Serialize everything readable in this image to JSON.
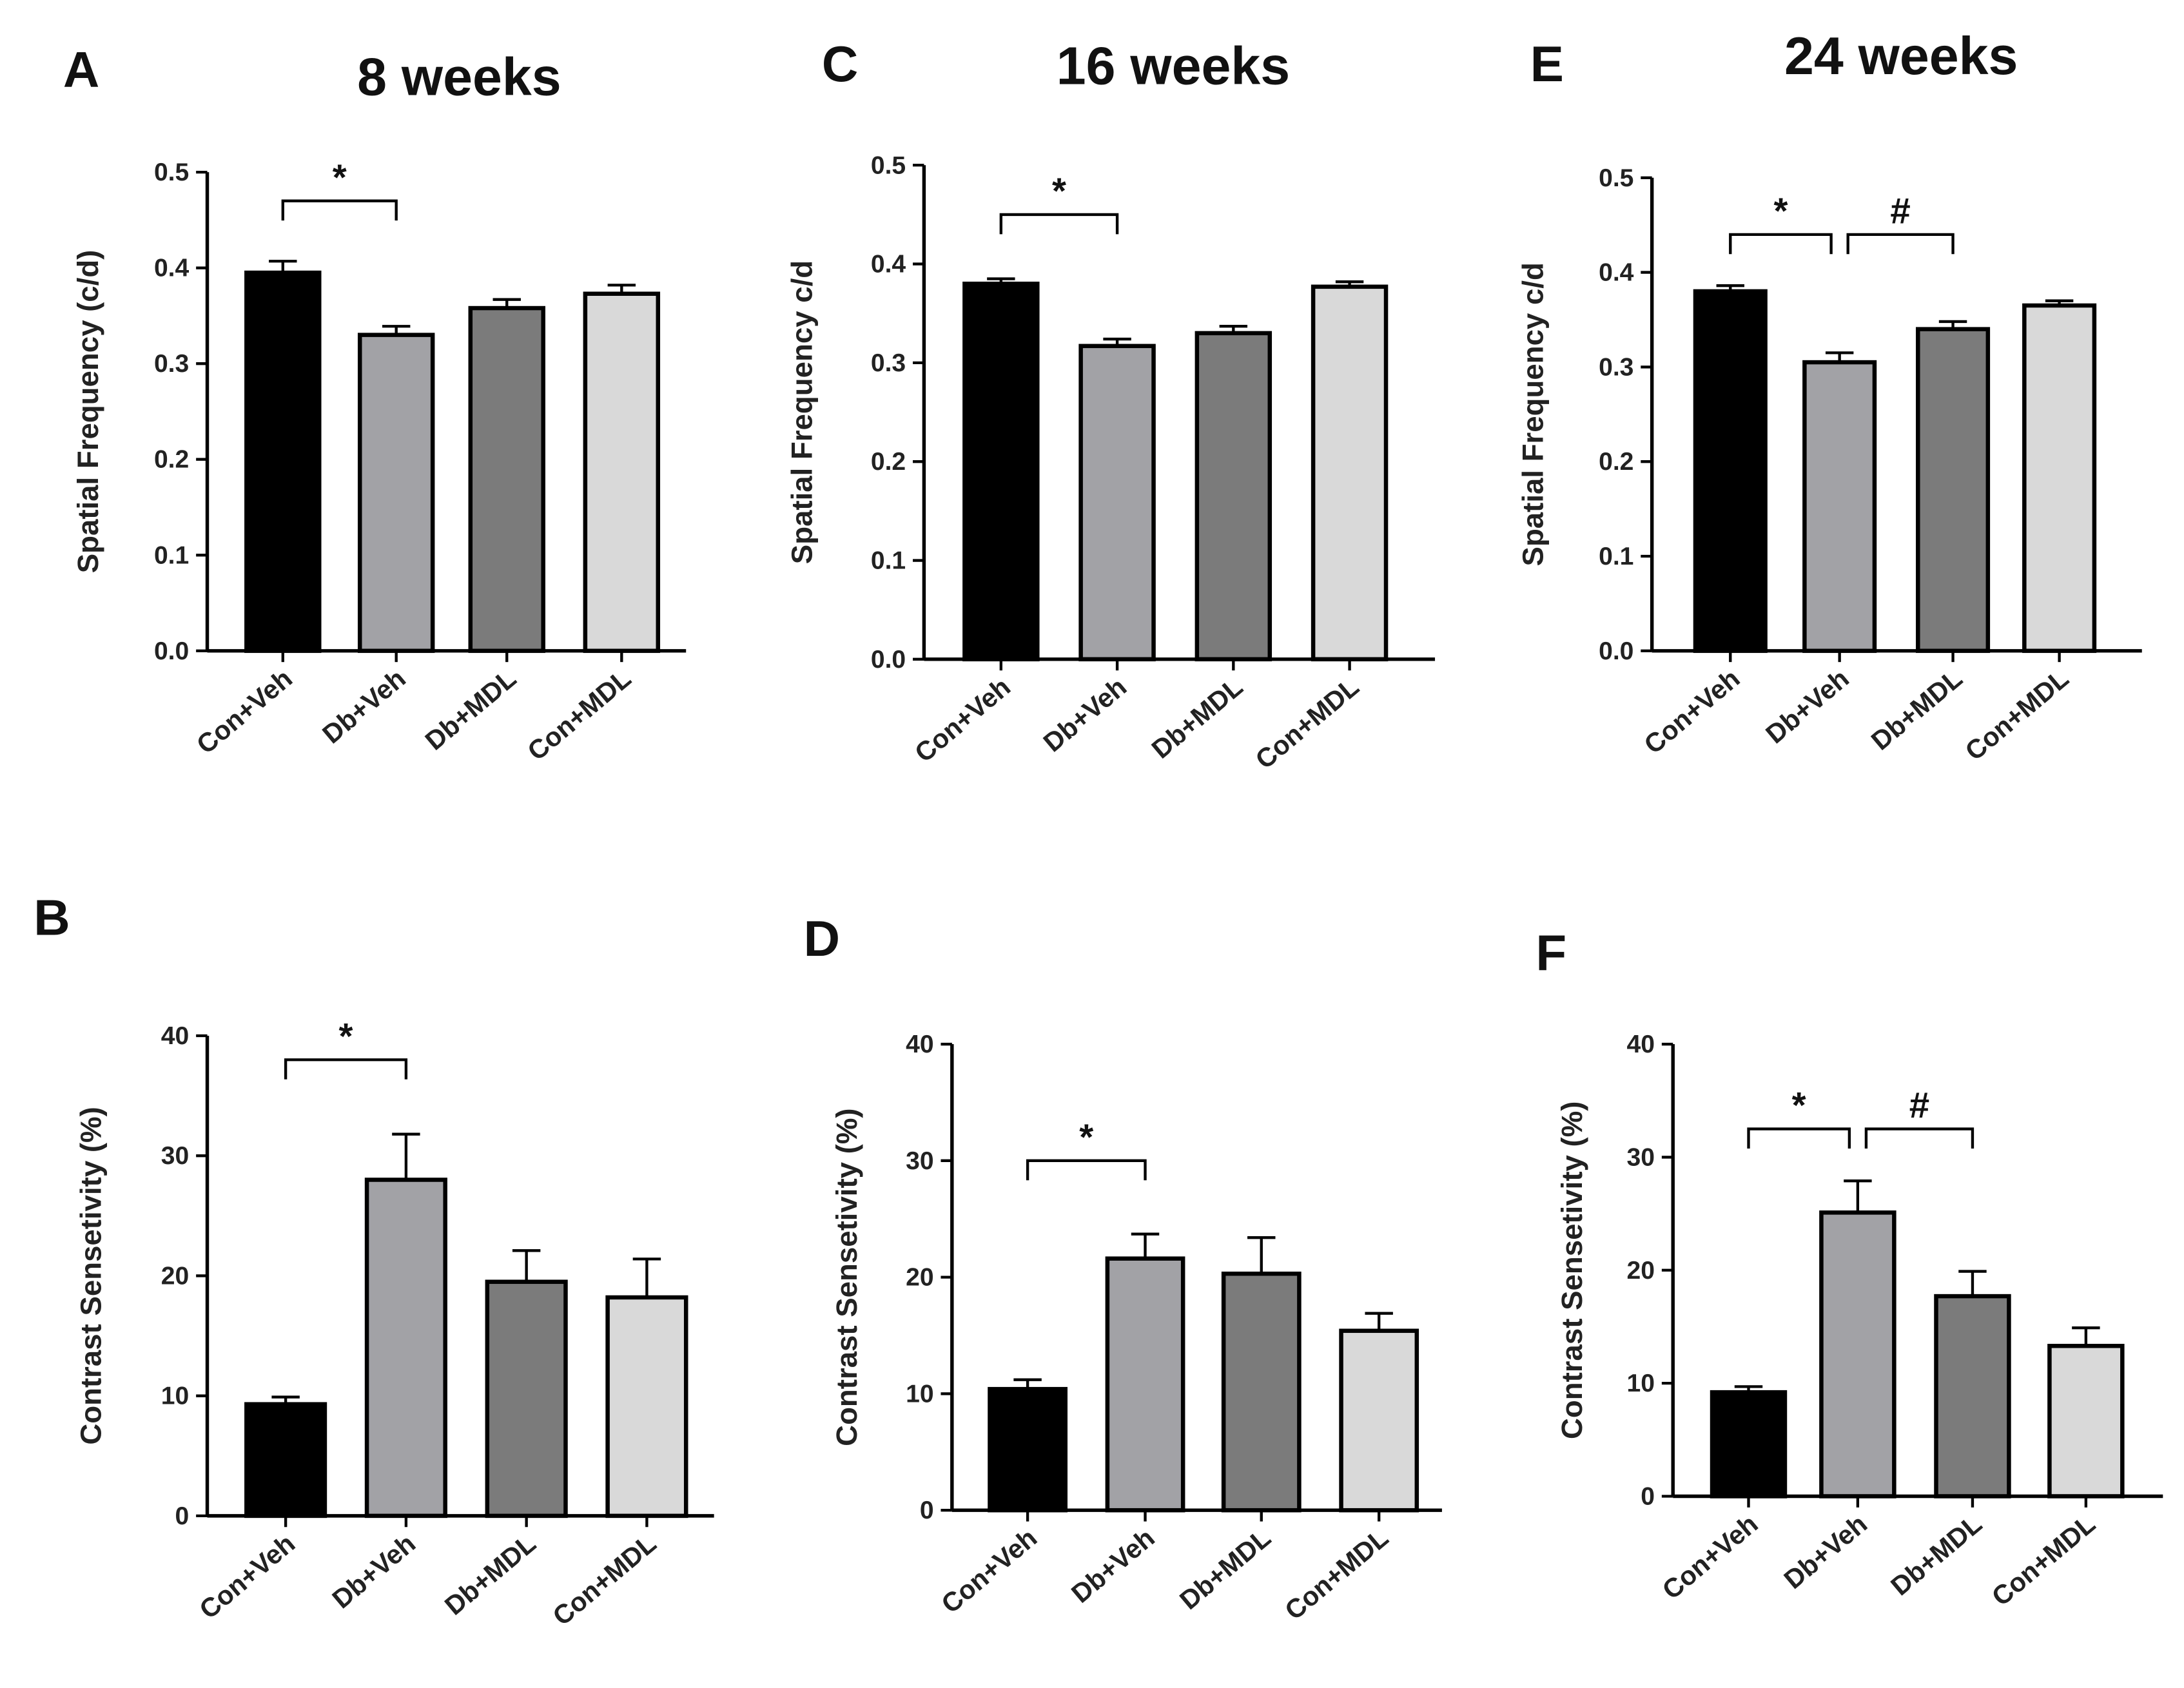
{
  "chart_data": [
    {
      "panel": "A",
      "title": "8 weeks",
      "type": "bar",
      "ylabel": "Spatial Frequency (c/d)",
      "ylim": [
        0,
        0.5
      ],
      "ticks": [
        "0.0",
        "0.1",
        "0.2",
        "0.3",
        "0.4",
        "0.5"
      ],
      "categories": [
        "Con+Veh",
        "Db+Veh",
        "Db+MDL",
        "Con+MDL"
      ],
      "values": [
        0.395,
        0.33,
        0.358,
        0.373
      ],
      "errors": [
        0.012,
        0.009,
        0.009,
        0.009
      ],
      "colors": [
        "#000000",
        "#a2a2a6",
        "#7b7b7b",
        "#d9d9d9"
      ],
      "annotations": [
        {
          "from": 0,
          "to": 1,
          "label": "*",
          "level": 0.47
        }
      ]
    },
    {
      "panel": "C",
      "title": "16 weeks",
      "type": "bar",
      "ylabel": "Spatial Frequency c/d",
      "ylim": [
        0,
        0.5
      ],
      "ticks": [
        "0.0",
        "0.1",
        "0.2",
        "0.3",
        "0.4",
        "0.5"
      ],
      "categories": [
        "Con+Veh",
        "Db+Veh",
        "Db+MDL",
        "Con+MDL"
      ],
      "values": [
        0.38,
        0.317,
        0.33,
        0.377
      ],
      "errors": [
        0.005,
        0.007,
        0.007,
        0.005
      ],
      "colors": [
        "#000000",
        "#a2a2a6",
        "#7b7b7b",
        "#d9d9d9"
      ],
      "annotations": [
        {
          "from": 0,
          "to": 1,
          "label": "*",
          "level": 0.45
        }
      ]
    },
    {
      "panel": "E",
      "title": "24 weeks",
      "type": "bar",
      "ylabel": "Spatial Frequency c/d",
      "ylim": [
        0,
        0.5
      ],
      "ticks": [
        "0.0",
        "0.1",
        "0.2",
        "0.3",
        "0.4",
        "0.5"
      ],
      "categories": [
        "Con+Veh",
        "Db+Veh",
        "Db+MDL",
        "Con+MDL"
      ],
      "values": [
        0.38,
        0.305,
        0.34,
        0.365
      ],
      "errors": [
        0.006,
        0.01,
        0.008,
        0.005
      ],
      "colors": [
        "#000000",
        "#a2a2a6",
        "#7b7b7b",
        "#d9d9d9"
      ],
      "annotations": [
        {
          "from": 0,
          "to": 1,
          "label": "*",
          "level": 0.44
        },
        {
          "from": 1,
          "to": 2,
          "label": "#",
          "level": 0.44
        }
      ]
    },
    {
      "panel": "B",
      "title": "",
      "type": "bar",
      "ylabel": "Contrast Sensetivity (%)",
      "ylim": [
        0,
        40
      ],
      "ticks": [
        "0",
        "10",
        "20",
        "30",
        "40"
      ],
      "categories": [
        "Con+Veh",
        "Db+Veh",
        "Db+MDL",
        "Con+MDL"
      ],
      "values": [
        9.3,
        28.0,
        19.5,
        18.2
      ],
      "errors": [
        0.6,
        3.8,
        2.6,
        3.2
      ],
      "colors": [
        "#000000",
        "#a2a2a6",
        "#7b7b7b",
        "#d9d9d9"
      ],
      "annotations": [
        {
          "from": 0,
          "to": 1,
          "label": "*",
          "level": 38
        }
      ]
    },
    {
      "panel": "D",
      "title": "",
      "type": "bar",
      "ylabel": "Contrast Sensetivity (%)",
      "ylim": [
        0,
        40
      ],
      "ticks": [
        "0",
        "10",
        "20",
        "30",
        "40"
      ],
      "categories": [
        "Con+Veh",
        "Db+Veh",
        "Db+MDL",
        "Con+MDL"
      ],
      "values": [
        10.4,
        21.6,
        20.3,
        15.4
      ],
      "errors": [
        0.8,
        2.1,
        3.1,
        1.5
      ],
      "colors": [
        "#000000",
        "#a2a2a6",
        "#7b7b7b",
        "#d9d9d9"
      ],
      "annotations": [
        {
          "from": 0,
          "to": 1,
          "label": "*",
          "level": 30
        }
      ]
    },
    {
      "panel": "F",
      "title": "",
      "type": "bar",
      "ylabel": "Contrast Sensetivity (%)",
      "ylim": [
        0,
        40
      ],
      "ticks": [
        "0",
        "10",
        "20",
        "30",
        "40"
      ],
      "categories": [
        "Con+Veh",
        "Db+Veh",
        "Db+MDL",
        "Con+MDL"
      ],
      "values": [
        9.2,
        25.1,
        17.7,
        13.3
      ],
      "errors": [
        0.5,
        2.8,
        2.2,
        1.6
      ],
      "colors": [
        "#000000",
        "#a2a2a6",
        "#7b7b7b",
        "#d9d9d9"
      ],
      "annotations": [
        {
          "from": 0,
          "to": 1,
          "label": "*",
          "level": 32.5
        },
        {
          "from": 1,
          "to": 2,
          "label": "#",
          "level": 32.5
        }
      ]
    }
  ]
}
